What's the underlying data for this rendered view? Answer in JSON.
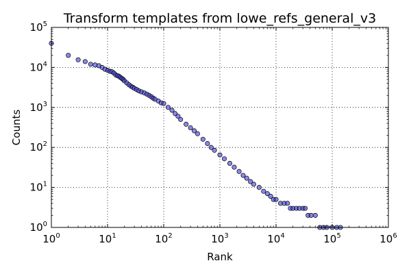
{
  "chart_data": {
    "type": "scatter",
    "title": "Transform templates from lowe_refs_general_v3",
    "xlabel": "Rank",
    "ylabel": "Counts",
    "xscale": "log",
    "yscale": "log",
    "xlim": [
      1,
      1000000
    ],
    "ylim": [
      1,
      100000
    ],
    "grid": true,
    "x_ticks": [
      {
        "base": "10",
        "exp": "0",
        "value": 1
      },
      {
        "base": "10",
        "exp": "1",
        "value": 10
      },
      {
        "base": "10",
        "exp": "2",
        "value": 100
      },
      {
        "base": "10",
        "exp": "3",
        "value": 1000
      },
      {
        "base": "10",
        "exp": "4",
        "value": 10000
      },
      {
        "base": "10",
        "exp": "5",
        "value": 100000
      },
      {
        "base": "10",
        "exp": "6",
        "value": 1000000
      }
    ],
    "y_ticks": [
      {
        "base": "10",
        "exp": "0",
        "value": 1
      },
      {
        "base": "10",
        "exp": "1",
        "value": 10
      },
      {
        "base": "10",
        "exp": "2",
        "value": 100
      },
      {
        "base": "10",
        "exp": "3",
        "value": 1000
      },
      {
        "base": "10",
        "exp": "4",
        "value": 10000
      },
      {
        "base": "10",
        "exp": "5",
        "value": 100000
      }
    ],
    "point_color": "#3a3ad8",
    "point_edge": "#000000",
    "series": [
      {
        "x": [
          1,
          2,
          3,
          4,
          5,
          6,
          7,
          8,
          9,
          10,
          11,
          12,
          13,
          14,
          15,
          16,
          17,
          18,
          19,
          20,
          22,
          24,
          26,
          28,
          30,
          33,
          36,
          40,
          45,
          50,
          55,
          60,
          65,
          70,
          80,
          90,
          100,
          120,
          140,
          160,
          180,
          200,
          250,
          300,
          350,
          400,
          500,
          600,
          700,
          800,
          1000,
          1200,
          1500,
          1800,
          2200,
          2600,
          3000,
          3500,
          4000,
          5000,
          6000,
          7000,
          8000,
          9000,
          10000,
          12000,
          14000,
          16000,
          18000,
          20000,
          23000,
          26000,
          30000,
          33000,
          37000,
          42000,
          50000,
          60000,
          70000,
          80000,
          100000,
          120000,
          140000
        ],
        "y": [
          40000,
          20000,
          15500,
          14000,
          12000,
          11500,
          11000,
          10000,
          9000,
          8500,
          8000,
          7800,
          7200,
          6500,
          6200,
          6000,
          5600,
          5300,
          5000,
          4600,
          4100,
          3700,
          3400,
          3200,
          3000,
          2800,
          2600,
          2450,
          2300,
          2150,
          2000,
          1850,
          1700,
          1600,
          1450,
          1300,
          1250,
          1000,
          850,
          700,
          600,
          500,
          380,
          310,
          260,
          220,
          160,
          125,
          100,
          85,
          65,
          52,
          40,
          32,
          25,
          20,
          17,
          14,
          12,
          10,
          8,
          7,
          6,
          5,
          5,
          4,
          4,
          4,
          3,
          3,
          3,
          3,
          3,
          3,
          2,
          2,
          2,
          1,
          1,
          1,
          1,
          1,
          1
        ]
      }
    ]
  }
}
